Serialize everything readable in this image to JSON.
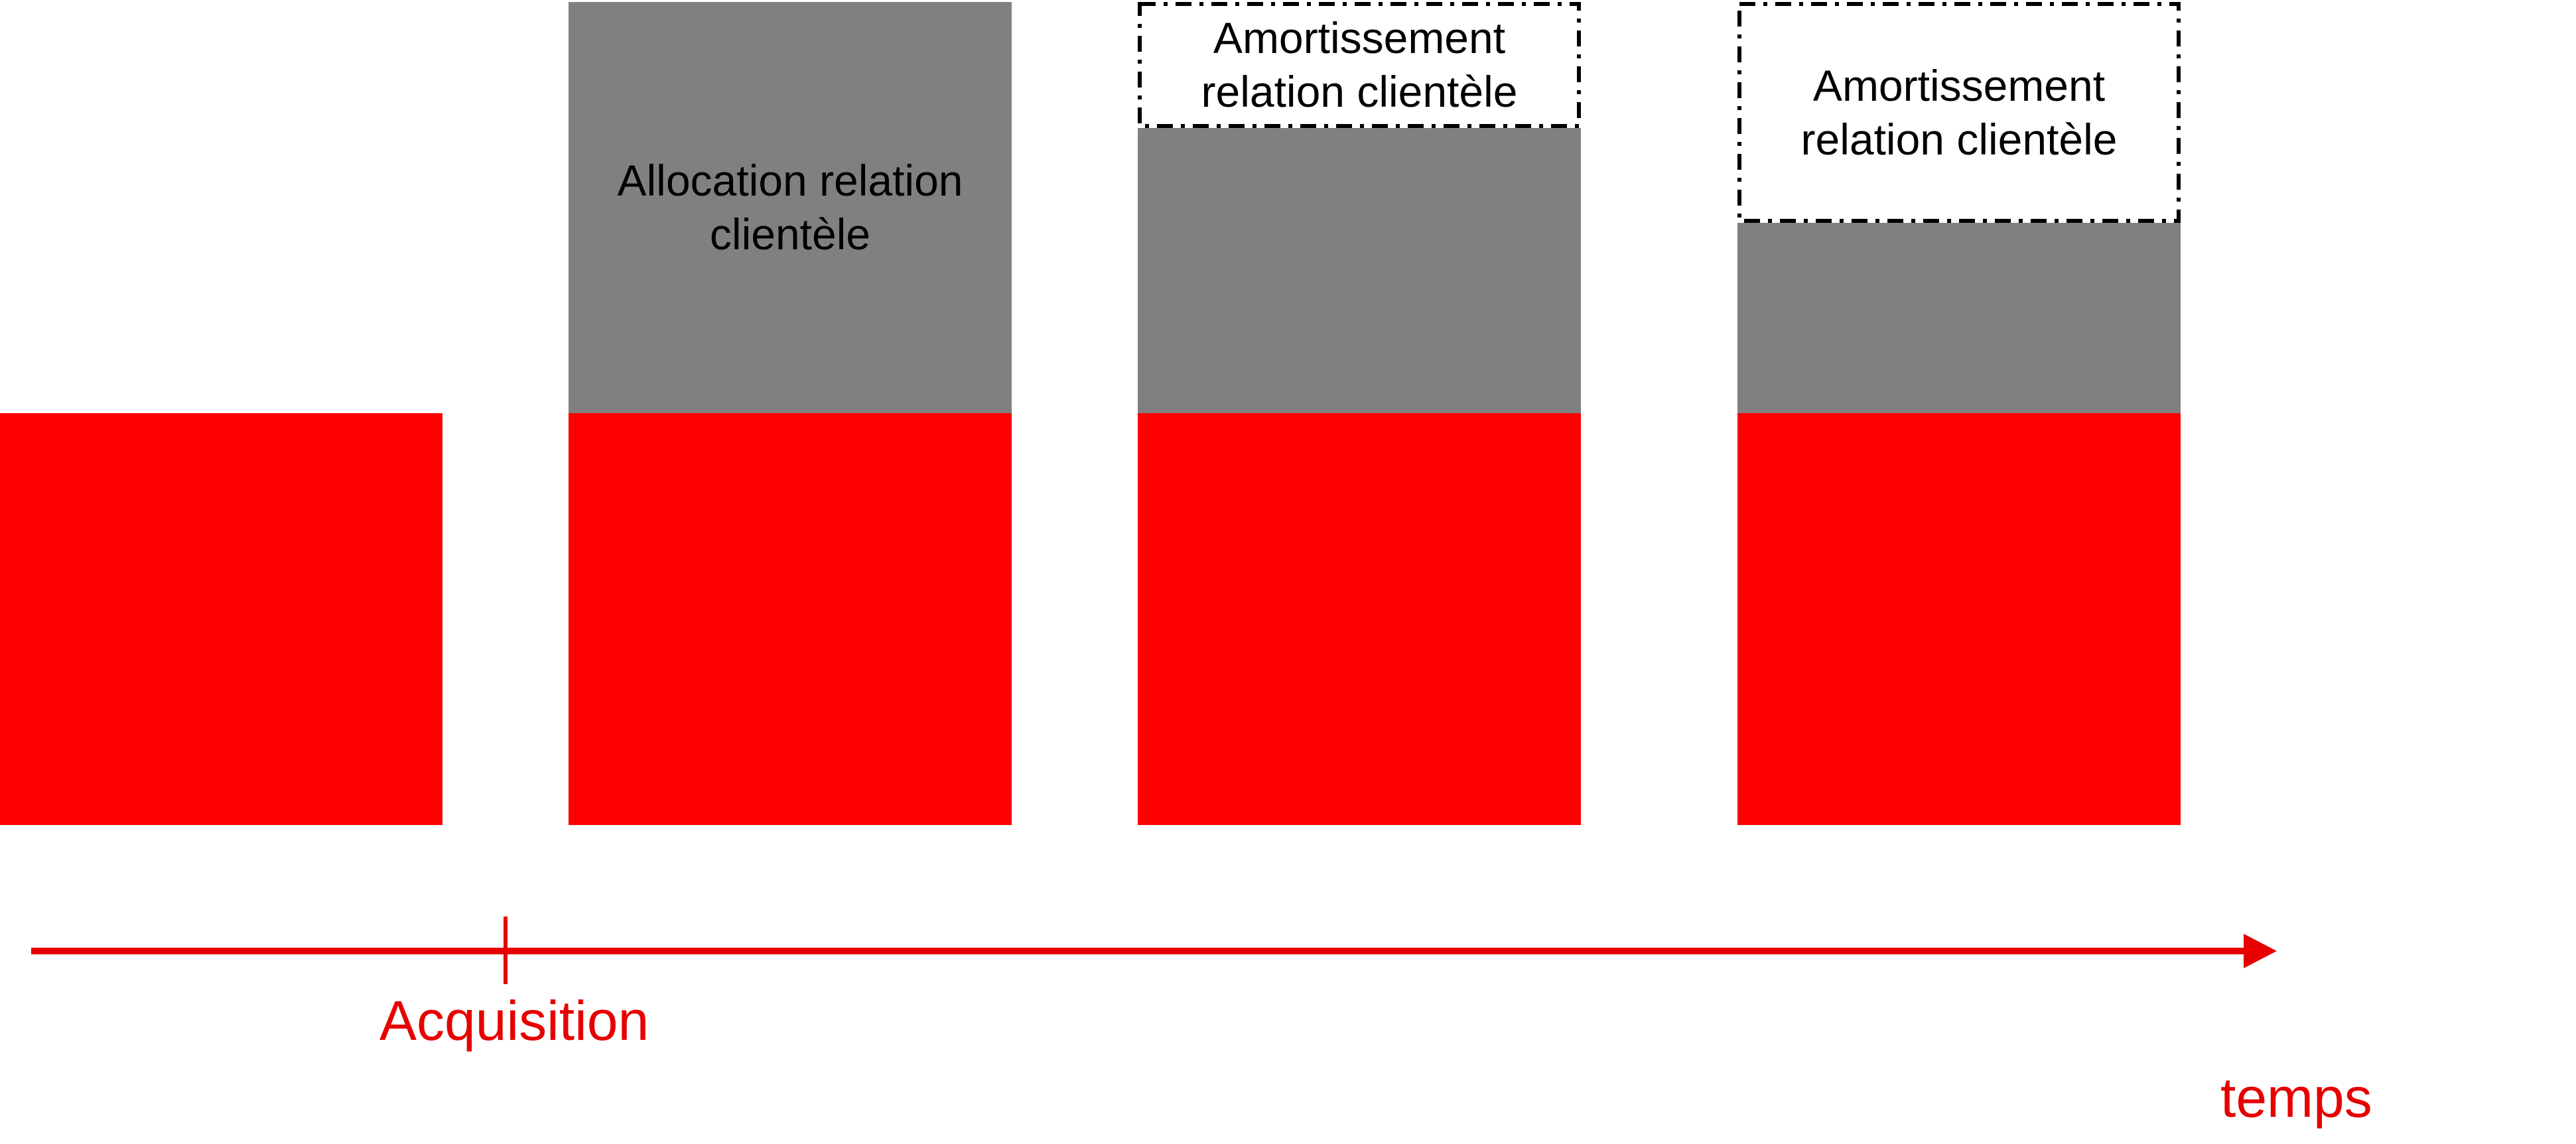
{
  "colors": {
    "base": "#ff0000",
    "allocation": "#808080",
    "axis": "#e60000",
    "amortization_box_border": "#000000"
  },
  "stages": [
    {
      "base": true,
      "allocation": false,
      "amortization": false
    },
    {
      "base": true,
      "allocation": true,
      "allocation_label": "Allocation relation\nclientèle",
      "amortization": false
    },
    {
      "base": true,
      "allocation": true,
      "amortization": true,
      "amortization_label": "Amortissement\nrelation clientèle"
    },
    {
      "base": true,
      "allocation": true,
      "amortization": true,
      "amortization_label": "Amortissement\nrelation clientèle"
    }
  ],
  "axis": {
    "acquisition_label": "Acquisition",
    "time_label": "temps"
  }
}
